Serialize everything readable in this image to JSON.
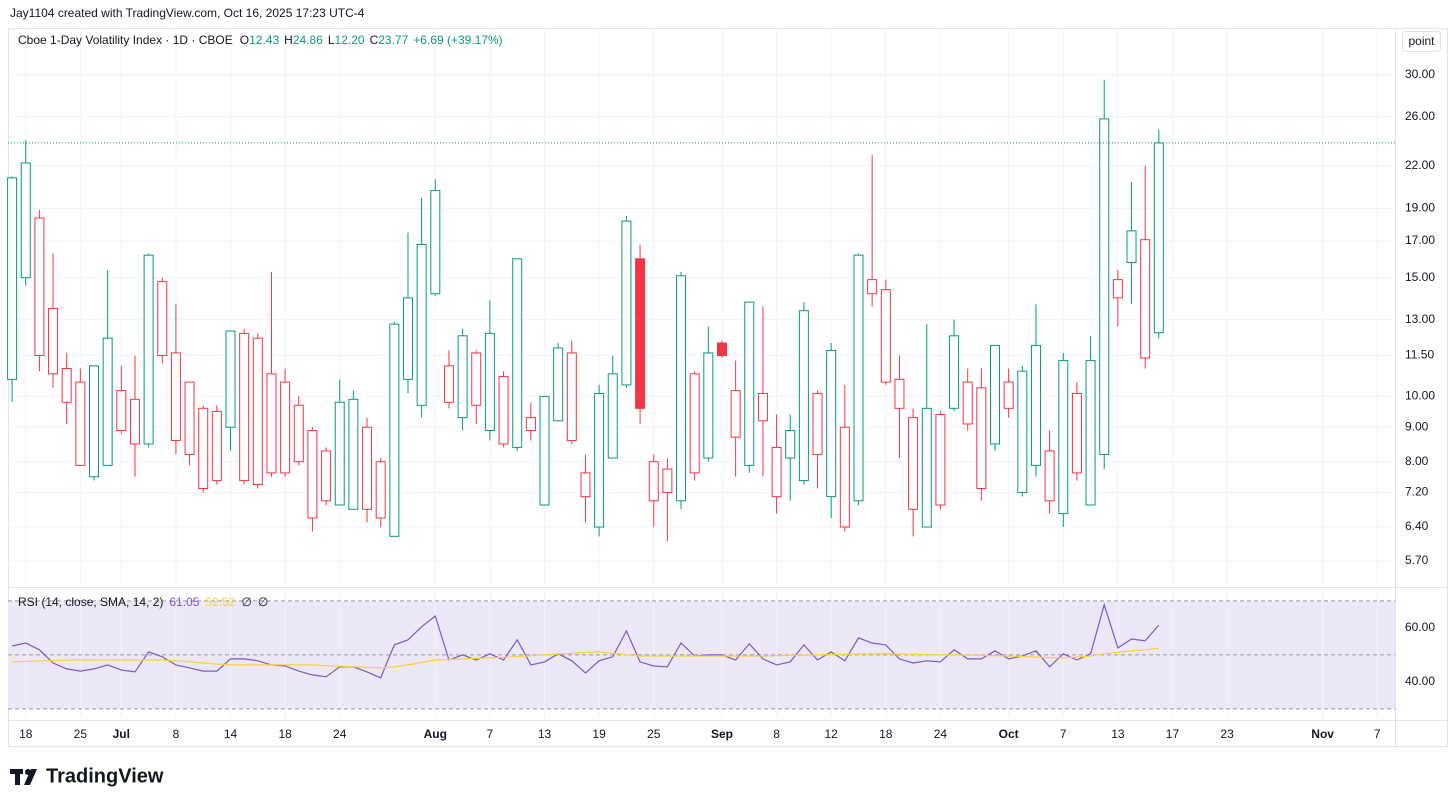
{
  "chart_data": {
    "type": "candlestick",
    "attribution": "Jay1104 created with TradingView.com, Oct 16, 2025 17:23 UTC-4",
    "title": "Cboe 1-Day Volatility Index · 1D · CBOE",
    "ohlc_letters": [
      "O",
      "H",
      "L",
      "C"
    ],
    "last_labels": [
      "12.43",
      "24.86",
      "12.20",
      "23.77"
    ],
    "change": "+6.69 (+39.17%)",
    "scale_button": "point",
    "brand": "TradingView",
    "open": [
      10.6,
      15,
      11.5,
      10.8,
      9.8,
      7.9,
      7.6,
      7.9,
      8.9,
      8.5,
      8.5,
      11.5,
      8.6,
      8.2,
      7.3,
      7.5,
      9,
      7.5,
      7.4,
      7.7,
      7.7,
      8,
      6.6,
      7,
      6.9,
      6.8,
      6.8,
      6.6,
      6.2,
      10.6,
      9.7,
      14.2,
      9.8,
      9.3,
      9.7,
      8.9,
      8.5,
      8.4,
      8.9,
      6.9,
      9.2,
      8.6,
      7.1,
      6.4,
      8.1,
      10.4,
      16,
      7,
      7.2,
      7,
      7.7,
      8.1,
      12,
      8.7,
      7.9,
      9.2,
      7.1,
      8.1,
      7.5,
      8.2,
      7.1,
      6.4,
      7,
      14.2,
      10.5,
      9.6,
      6.8,
      6.4,
      6.9,
      9.6,
      9.1,
      7.3,
      8.5,
      9.6,
      7.2,
      7.9,
      7,
      6.7,
      7.7,
      6.9,
      8.2,
      14,
      15.8,
      11.4,
      12.43
    ],
    "high": [
      21.2,
      24,
      18.9,
      16.3,
      11.6,
      11,
      11.1,
      15.4,
      11.1,
      11.5,
      16.3,
      15,
      13.7,
      10.5,
      9.7,
      9.7,
      12.5,
      12.6,
      12.4,
      15.3,
      11,
      10,
      9,
      8.4,
      10.6,
      10.2,
      9.3,
      8.1,
      12.9,
      17.5,
      19.7,
      21,
      11.7,
      12.6,
      11.7,
      13.9,
      10.9,
      16,
      9.8,
      10,
      12,
      12.1,
      8.2,
      10.4,
      11.5,
      18.5,
      16.8,
      8.2,
      8.1,
      15.3,
      10.9,
      12.7,
      12.1,
      11.3,
      13.8,
      13.6,
      9.4,
      9.4,
      13.8,
      10.2,
      12,
      10.4,
      16.3,
      22.8,
      14.9,
      11.5,
      9.6,
      12.8,
      9.5,
      13,
      11,
      11,
      11.9,
      11,
      11.1,
      13.7,
      8.9,
      11.6,
      10.5,
      12.3,
      29.5,
      15.4,
      20.8,
      22,
      24.86
    ],
    "low": [
      9.8,
      14.6,
      10.9,
      10.3,
      9.1,
      7.9,
      7.5,
      7.9,
      8.8,
      7.6,
      8.4,
      11.2,
      8.2,
      7.9,
      7.2,
      7.4,
      8.3,
      7.4,
      7.3,
      7.6,
      7.6,
      7.9,
      6.3,
      6.9,
      6.9,
      6.8,
      6.5,
      6.4,
      6.2,
      10.1,
      9.3,
      14.1,
      9.6,
      8.9,
      9.1,
      8.6,
      8.4,
      8.3,
      8.6,
      6.9,
      9.2,
      8.5,
      6.5,
      6.2,
      8.1,
      10.3,
      9.1,
      6.4,
      6.1,
      6.8,
      7.5,
      8,
      11.4,
      7.6,
      7.7,
      7.6,
      6.7,
      7,
      7.4,
      7.3,
      6.6,
      6.3,
      6.9,
      13.6,
      10.4,
      8.1,
      6.2,
      6.4,
      6.8,
      9.5,
      8.9,
      7,
      8.3,
      9.3,
      7.1,
      7.6,
      6.7,
      6.4,
      7.5,
      6.9,
      7.8,
      12.7,
      13.7,
      11,
      12.2
    ],
    "close": [
      21.1,
      22.2,
      18.4,
      13.5,
      11,
      10.5,
      11.1,
      12.2,
      10.2,
      9.9,
      16.2,
      14.8,
      11.6,
      10.5,
      9.6,
      9.5,
      12.5,
      12.4,
      12.2,
      10.8,
      10.5,
      9.7,
      8.9,
      8.3,
      9.8,
      9.9,
      9,
      8,
      12.8,
      14,
      16.8,
      20.2,
      11.1,
      12.3,
      11.6,
      12.4,
      10.7,
      16,
      9.3,
      10,
      11.8,
      11.6,
      7.7,
      10.1,
      10.8,
      18.2,
      9.6,
      8,
      7.8,
      15.1,
      10.8,
      11.6,
      11.5,
      10.2,
      13.8,
      10.1,
      8.4,
      8.9,
      13.4,
      10.1,
      11.7,
      9,
      16.2,
      14.9,
      14.4,
      10.6,
      9.3,
      9.6,
      9.4,
      12.3,
      10.5,
      10.3,
      11.9,
      10.5,
      10.9,
      11.9,
      8.3,
      11.3,
      10.1,
      11.3,
      25.8,
      14.9,
      17.6,
      17.08,
      23.77
    ],
    "up_color": "#089981",
    "down_color": "#f23645",
    "log_scale": true,
    "ylim": [
      5.25,
      35.2
    ],
    "yticks": [
      {
        "value": 5.7,
        "label": "5.70"
      },
      {
        "value": 6.4,
        "label": "6.40"
      },
      {
        "value": 7.2,
        "label": "7.20"
      },
      {
        "value": 8,
        "label": "8.00"
      },
      {
        "value": 9,
        "label": "9.00"
      },
      {
        "value": 10,
        "label": "10.00"
      },
      {
        "value": 11.5,
        "label": "11.50"
      },
      {
        "value": 13,
        "label": "13.00"
      },
      {
        "value": 15,
        "label": "15.00"
      },
      {
        "value": 17,
        "label": "17.00"
      },
      {
        "value": 19,
        "label": "19.00"
      },
      {
        "value": 22,
        "label": "22.00"
      },
      {
        "value": 26,
        "label": "26.00"
      },
      {
        "value": 30,
        "label": "30.00"
      }
    ],
    "xlim": [
      -0.3,
      101.3
    ],
    "xticks": [
      {
        "value": 1,
        "label": "18"
      },
      {
        "value": 5,
        "label": "25"
      },
      {
        "value": 8,
        "label": "Jul"
      },
      {
        "value": 12,
        "label": "8"
      },
      {
        "value": 16,
        "label": "14"
      },
      {
        "value": 20,
        "label": "18"
      },
      {
        "value": 24,
        "label": "24"
      },
      {
        "value": 31,
        "label": "Aug"
      },
      {
        "value": 35,
        "label": "7"
      },
      {
        "value": 39,
        "label": "13"
      },
      {
        "value": 43,
        "label": "19"
      },
      {
        "value": 47,
        "label": "25"
      },
      {
        "value": 52,
        "label": "Sep"
      },
      {
        "value": 56,
        "label": "8"
      },
      {
        "value": 60,
        "label": "12"
      },
      {
        "value": 64,
        "label": "18"
      },
      {
        "value": 68,
        "label": "24"
      },
      {
        "value": 73,
        "label": "Oct"
      },
      {
        "value": 77,
        "label": "7"
      },
      {
        "value": 81,
        "label": "13"
      },
      {
        "value": 85,
        "label": "17"
      },
      {
        "value": 89,
        "label": "23"
      },
      {
        "value": 96,
        "label": "Nov"
      },
      {
        "value": 100,
        "label": "7"
      }
    ],
    "grid": true,
    "last_price_line": true,
    "rsi": {
      "title": "RSI (14, close, SMA, 14, 2)",
      "series": [
        {
          "color": "#7e57c2",
          "values": [
            53.3,
            54.4,
            51.9,
            47,
            44.8,
            44,
            44.8,
            46.3,
            44.4,
            43.7,
            51.1,
            49.3,
            46.3,
            45.2,
            44,
            44,
            48.5,
            48.5,
            47.8,
            46.3,
            45.9,
            44,
            42.6,
            41.9,
            45.6,
            45.6,
            43.7,
            41.5,
            53.7,
            55.6,
            60.4,
            64.4,
            48.1,
            50,
            48.1,
            50.4,
            48.1,
            55.6,
            46.3,
            47.4,
            50.4,
            47.8,
            43.3,
            47.8,
            49.3,
            58.9,
            47.4,
            45.9,
            45.6,
            54.4,
            49.6,
            50,
            50,
            48.1,
            54.1,
            48.5,
            46.3,
            47.4,
            53.7,
            48.1,
            51.1,
            47.8,
            56.3,
            54.4,
            53.7,
            48.5,
            47,
            47.8,
            47.4,
            51.9,
            48.5,
            48.5,
            51.5,
            48.5,
            49.6,
            51.5,
            45.6,
            50.4,
            48.1,
            50.4,
            68.5,
            52.6,
            55.9,
            55.2,
            61.05
          ]
        },
        {
          "color": "#f7d23a",
          "values": [
            47.4,
            47.6,
            47.8,
            47.9,
            48.0,
            48.1,
            48.1,
            48.1,
            48.1,
            48.1,
            48.1,
            48.1,
            47.8,
            47.4,
            47.0,
            46.6,
            46.3,
            46.3,
            46.3,
            46.3,
            46.3,
            46.3,
            46.3,
            46.0,
            45.8,
            45.6,
            45.4,
            45.2,
            45.6,
            46.3,
            47.2,
            48.1,
            48.3,
            48.5,
            48.7,
            48.9,
            49.1,
            49.4,
            49.7,
            50.0,
            50.3,
            50.6,
            50.9,
            51.1,
            50.6,
            50.0,
            49.6,
            49.6,
            49.6,
            49.6,
            49.6,
            49.6,
            49.6,
            49.6,
            49.6,
            49.6,
            49.7,
            49.8,
            49.9,
            50.0,
            50.1,
            50.2,
            50.3,
            50.4,
            50.4,
            50.3,
            50.2,
            50.1,
            50.0,
            50.0,
            49.9,
            49.8,
            49.7,
            49.6,
            49.4,
            49.2,
            49.0,
            48.9,
            49.2,
            49.6,
            50.4,
            51.0,
            51.5,
            51.9,
            52.52
          ]
        }
      ],
      "flags": [
        "∅",
        "∅"
      ],
      "ylim": [
        27,
        74.4
      ],
      "yticks": [
        {
          "value": 40,
          "label": "40.00"
        },
        {
          "value": 60,
          "label": "60.00"
        }
      ],
      "bands": [
        30,
        50,
        70
      ],
      "band_color": "#ede8f8"
    }
  }
}
